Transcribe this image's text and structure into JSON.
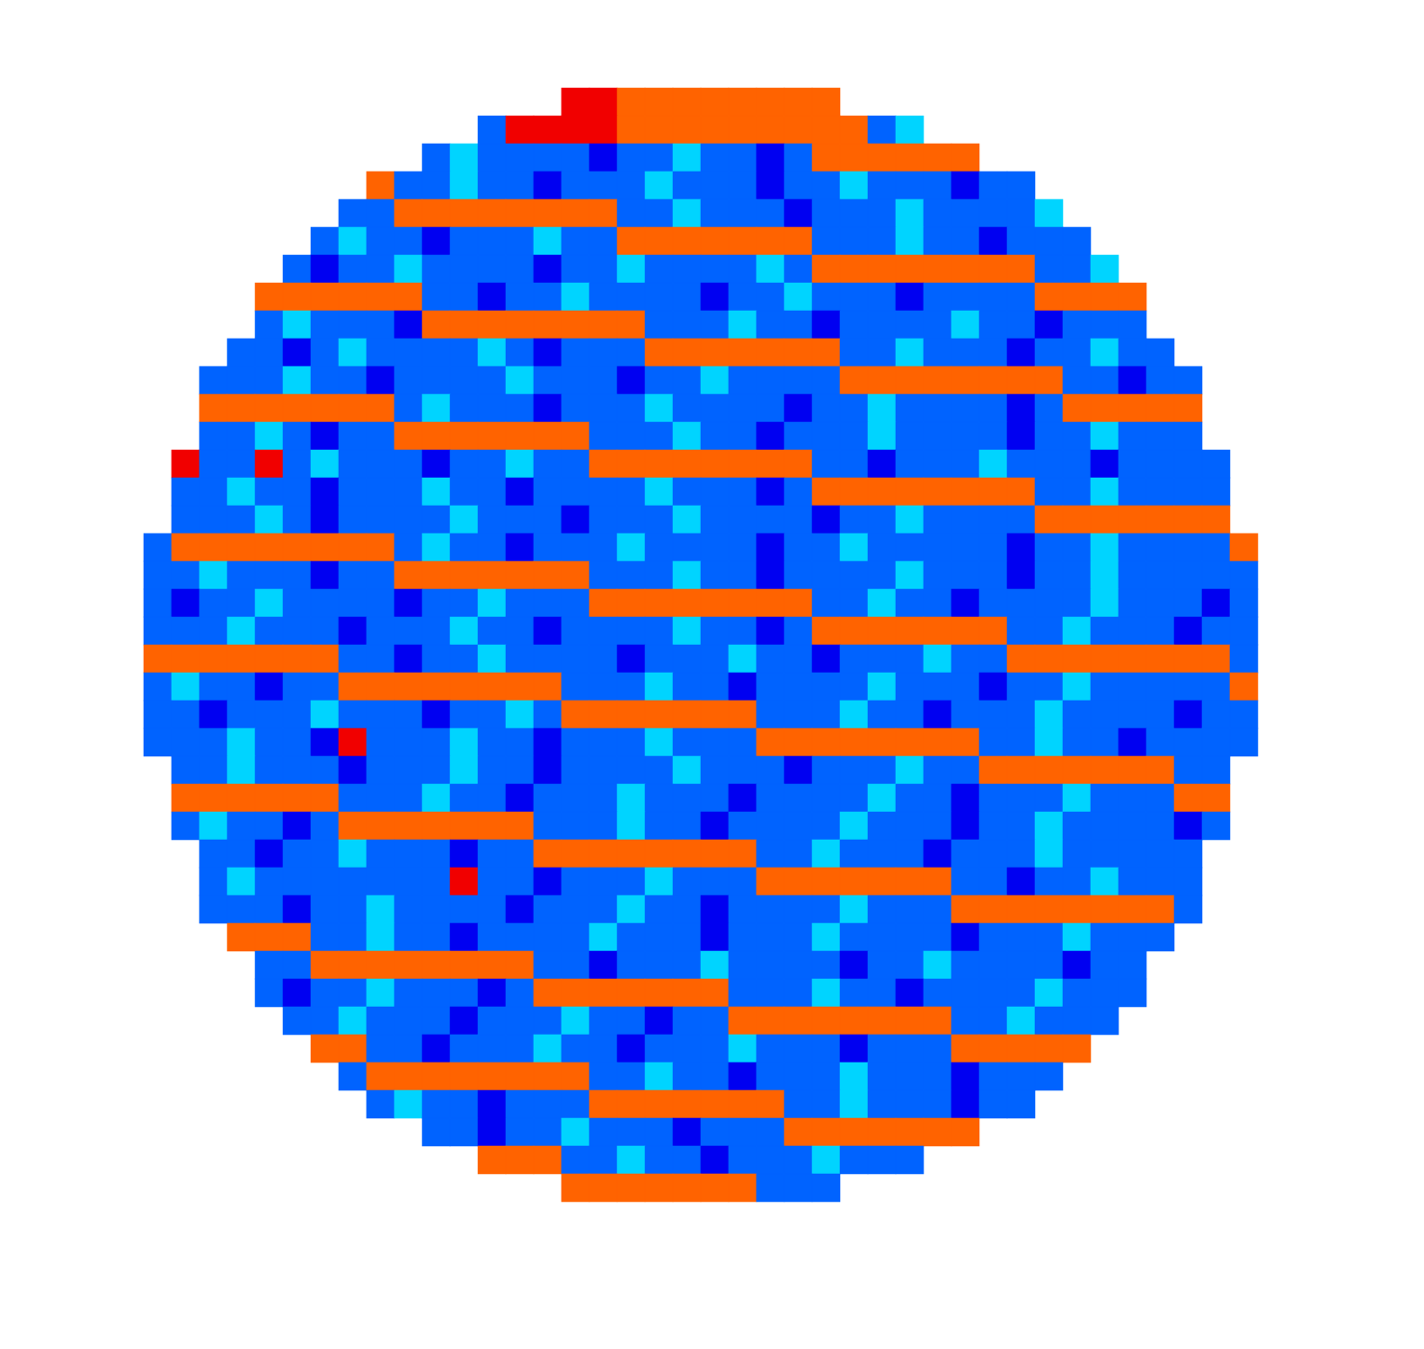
{
  "chart_data": {
    "type": "heatmap",
    "tick_labels": false,
    "zlim": [
      0,
      9
    ],
    "cells": [
      [
        null,
        null,
        null,
        null,
        null,
        null,
        null,
        null,
        null,
        null,
        null,
        null,
        null,
        null,
        null,
        8,
        8,
        7,
        7,
        7,
        7,
        7,
        7,
        7,
        7,
        null,
        null,
        null,
        null,
        null,
        null,
        null,
        null,
        null,
        null,
        null,
        null,
        null,
        null,
        null
      ],
      [
        null,
        null,
        null,
        null,
        null,
        null,
        null,
        null,
        null,
        null,
        null,
        null,
        2,
        8,
        8,
        8,
        8,
        7,
        7,
        7,
        7,
        7,
        7,
        7,
        7,
        7,
        2,
        3,
        null,
        null,
        null,
        null,
        null,
        null,
        null,
        null,
        null,
        null,
        null,
        null
      ],
      [
        null,
        null,
        null,
        null,
        null,
        null,
        null,
        null,
        null,
        null,
        2,
        3,
        2,
        2,
        2,
        2,
        1,
        2,
        2,
        3,
        2,
        2,
        1,
        2,
        7,
        7,
        7,
        7,
        7,
        7,
        null,
        null,
        null,
        null,
        null,
        null,
        null,
        null,
        null,
        null
      ],
      [
        null,
        null,
        null,
        null,
        null,
        null,
        null,
        null,
        7,
        2,
        2,
        3,
        2,
        2,
        1,
        2,
        2,
        2,
        3,
        2,
        2,
        2,
        1,
        2,
        2,
        3,
        2,
        2,
        2,
        1,
        2,
        2,
        null,
        null,
        null,
        null,
        null,
        null,
        null,
        null
      ],
      [
        null,
        null,
        null,
        null,
        null,
        null,
        null,
        2,
        2,
        7,
        7,
        7,
        7,
        7,
        7,
        7,
        7,
        2,
        2,
        3,
        2,
        2,
        2,
        1,
        2,
        2,
        2,
        3,
        2,
        2,
        2,
        2,
        3,
        null,
        null,
        null,
        null,
        null,
        null,
        null
      ],
      [
        null,
        null,
        null,
        null,
        null,
        null,
        2,
        3,
        2,
        2,
        1,
        2,
        2,
        2,
        3,
        2,
        2,
        7,
        7,
        7,
        7,
        7,
        7,
        7,
        2,
        2,
        2,
        3,
        2,
        2,
        1,
        2,
        2,
        2,
        null,
        null,
        null,
        null,
        null,
        null
      ],
      [
        null,
        null,
        null,
        null,
        null,
        2,
        1,
        2,
        2,
        3,
        2,
        2,
        2,
        2,
        1,
        2,
        2,
        3,
        2,
        2,
        2,
        2,
        3,
        2,
        7,
        7,
        7,
        7,
        7,
        7,
        7,
        7,
        2,
        2,
        3,
        null,
        null,
        null,
        null,
        null
      ],
      [
        null,
        null,
        null,
        null,
        7,
        7,
        7,
        7,
        7,
        7,
        2,
        2,
        1,
        2,
        2,
        3,
        2,
        2,
        2,
        2,
        1,
        2,
        2,
        3,
        2,
        2,
        2,
        1,
        2,
        2,
        2,
        2,
        7,
        7,
        7,
        7,
        null,
        null,
        null,
        null
      ],
      [
        null,
        null,
        null,
        null,
        2,
        3,
        2,
        2,
        2,
        1,
        7,
        7,
        7,
        7,
        7,
        7,
        7,
        7,
        2,
        2,
        2,
        3,
        2,
        2,
        1,
        2,
        2,
        2,
        2,
        3,
        2,
        2,
        1,
        2,
        2,
        2,
        null,
        null,
        null,
        null
      ],
      [
        null,
        null,
        null,
        2,
        2,
        1,
        2,
        3,
        2,
        2,
        2,
        2,
        3,
        2,
        1,
        2,
        2,
        2,
        7,
        7,
        7,
        7,
        7,
        7,
        7,
        2,
        2,
        3,
        2,
        2,
        2,
        1,
        2,
        2,
        3,
        2,
        2,
        null,
        null,
        null
      ],
      [
        null,
        null,
        2,
        2,
        2,
        3,
        2,
        2,
        1,
        2,
        2,
        2,
        2,
        3,
        2,
        2,
        2,
        1,
        2,
        2,
        3,
        2,
        2,
        2,
        2,
        7,
        7,
        7,
        7,
        7,
        7,
        7,
        7,
        2,
        2,
        1,
        2,
        2,
        null,
        null
      ],
      [
        null,
        null,
        7,
        7,
        7,
        7,
        7,
        7,
        7,
        2,
        3,
        2,
        2,
        2,
        1,
        2,
        2,
        2,
        3,
        2,
        2,
        2,
        2,
        1,
        2,
        2,
        3,
        2,
        2,
        2,
        2,
        1,
        2,
        7,
        7,
        7,
        7,
        7,
        null,
        null
      ],
      [
        null,
        null,
        2,
        2,
        3,
        2,
        1,
        2,
        2,
        7,
        7,
        7,
        7,
        7,
        7,
        7,
        2,
        2,
        2,
        3,
        2,
        2,
        1,
        2,
        2,
        2,
        3,
        2,
        2,
        2,
        2,
        1,
        2,
        2,
        3,
        2,
        2,
        2,
        null,
        null
      ],
      [
        null,
        8,
        2,
        2,
        8,
        2,
        3,
        2,
        2,
        2,
        1,
        2,
        2,
        3,
        2,
        2,
        7,
        7,
        7,
        7,
        7,
        7,
        7,
        7,
        2,
        2,
        1,
        2,
        2,
        2,
        3,
        2,
        2,
        2,
        1,
        2,
        2,
        2,
        2,
        null
      ],
      [
        null,
        2,
        2,
        3,
        2,
        2,
        1,
        2,
        2,
        2,
        3,
        2,
        2,
        1,
        2,
        2,
        2,
        2,
        3,
        2,
        2,
        2,
        1,
        2,
        7,
        7,
        7,
        7,
        7,
        7,
        7,
        7,
        2,
        2,
        3,
        2,
        2,
        2,
        2,
        null
      ],
      [
        null,
        2,
        2,
        2,
        3,
        2,
        1,
        2,
        2,
        2,
        2,
        3,
        2,
        2,
        2,
        1,
        2,
        2,
        2,
        3,
        2,
        2,
        2,
        2,
        1,
        2,
        2,
        3,
        2,
        2,
        2,
        2,
        7,
        7,
        7,
        7,
        7,
        7,
        7,
        null
      ],
      [
        2,
        7,
        7,
        7,
        7,
        7,
        7,
        7,
        7,
        2,
        3,
        2,
        2,
        1,
        2,
        2,
        2,
        3,
        2,
        2,
        2,
        2,
        1,
        2,
        2,
        3,
        2,
        2,
        2,
        2,
        2,
        1,
        2,
        2,
        3,
        2,
        2,
        2,
        2,
        7
      ],
      [
        2,
        2,
        3,
        2,
        2,
        2,
        1,
        2,
        2,
        7,
        7,
        7,
        7,
        7,
        7,
        7,
        2,
        2,
        2,
        3,
        2,
        2,
        1,
        2,
        2,
        2,
        2,
        3,
        2,
        2,
        2,
        1,
        2,
        2,
        3,
        2,
        2,
        2,
        2,
        2
      ],
      [
        2,
        1,
        2,
        2,
        3,
        2,
        2,
        2,
        2,
        1,
        2,
        2,
        3,
        2,
        2,
        2,
        7,
        7,
        7,
        7,
        7,
        7,
        7,
        7,
        2,
        2,
        3,
        2,
        2,
        1,
        2,
        2,
        2,
        2,
        3,
        2,
        2,
        2,
        1,
        2
      ],
      [
        2,
        2,
        2,
        3,
        2,
        2,
        2,
        1,
        2,
        2,
        2,
        3,
        2,
        2,
        1,
        2,
        2,
        2,
        2,
        3,
        2,
        2,
        1,
        2,
        7,
        7,
        7,
        7,
        7,
        7,
        7,
        2,
        2,
        3,
        2,
        2,
        2,
        1,
        2,
        2
      ],
      [
        7,
        7,
        7,
        7,
        7,
        7,
        7,
        2,
        2,
        1,
        2,
        2,
        3,
        2,
        2,
        2,
        2,
        1,
        2,
        2,
        2,
        3,
        2,
        2,
        1,
        2,
        2,
        2,
        3,
        2,
        2,
        7,
        7,
        7,
        7,
        7,
        7,
        7,
        7,
        2
      ],
      [
        2,
        3,
        2,
        2,
        1,
        2,
        2,
        7,
        7,
        7,
        7,
        7,
        7,
        7,
        7,
        2,
        2,
        2,
        3,
        2,
        2,
        1,
        2,
        2,
        2,
        2,
        3,
        2,
        2,
        2,
        1,
        2,
        2,
        3,
        2,
        2,
        2,
        2,
        2,
        7
      ],
      [
        2,
        2,
        1,
        2,
        2,
        2,
        3,
        2,
        2,
        2,
        1,
        2,
        2,
        3,
        2,
        7,
        7,
        7,
        7,
        7,
        7,
        7,
        2,
        2,
        2,
        3,
        2,
        2,
        1,
        2,
        2,
        2,
        3,
        2,
        2,
        2,
        2,
        1,
        2,
        2
      ],
      [
        2,
        2,
        2,
        3,
        2,
        2,
        1,
        8,
        2,
        2,
        2,
        3,
        2,
        2,
        1,
        2,
        2,
        2,
        3,
        2,
        2,
        2,
        7,
        7,
        7,
        7,
        7,
        7,
        7,
        7,
        2,
        2,
        3,
        2,
        2,
        1,
        2,
        2,
        2,
        2
      ],
      [
        null,
        2,
        2,
        3,
        2,
        2,
        2,
        1,
        2,
        2,
        2,
        3,
        2,
        2,
        1,
        2,
        2,
        2,
        2,
        3,
        2,
        2,
        2,
        1,
        2,
        2,
        2,
        3,
        2,
        2,
        7,
        7,
        7,
        7,
        7,
        7,
        7,
        2,
        2,
        null
      ],
      [
        null,
        7,
        7,
        7,
        7,
        7,
        7,
        2,
        2,
        2,
        3,
        2,
        2,
        1,
        2,
        2,
        2,
        3,
        2,
        2,
        2,
        1,
        2,
        2,
        2,
        2,
        3,
        2,
        2,
        1,
        2,
        2,
        2,
        3,
        2,
        2,
        2,
        7,
        7,
        null
      ],
      [
        null,
        2,
        3,
        2,
        2,
        1,
        2,
        7,
        7,
        7,
        7,
        7,
        7,
        7,
        2,
        2,
        2,
        3,
        2,
        2,
        1,
        2,
        2,
        2,
        2,
        3,
        2,
        2,
        2,
        1,
        2,
        2,
        3,
        2,
        2,
        2,
        2,
        1,
        2,
        null
      ],
      [
        null,
        null,
        2,
        2,
        1,
        2,
        2,
        3,
        2,
        2,
        2,
        1,
        2,
        2,
        7,
        7,
        7,
        7,
        7,
        7,
        7,
        7,
        2,
        2,
        3,
        2,
        2,
        2,
        1,
        2,
        2,
        2,
        3,
        2,
        2,
        2,
        2,
        2,
        null,
        null
      ],
      [
        null,
        null,
        2,
        3,
        2,
        2,
        2,
        2,
        2,
        2,
        2,
        8,
        2,
        2,
        1,
        2,
        2,
        2,
        3,
        2,
        2,
        2,
        7,
        7,
        7,
        7,
        7,
        7,
        7,
        2,
        2,
        1,
        2,
        2,
        3,
        2,
        2,
        2,
        null,
        null
      ],
      [
        null,
        null,
        2,
        2,
        2,
        1,
        2,
        2,
        3,
        2,
        2,
        2,
        2,
        1,
        2,
        2,
        2,
        3,
        2,
        2,
        1,
        2,
        2,
        2,
        2,
        3,
        2,
        2,
        2,
        7,
        7,
        7,
        7,
        7,
        7,
        7,
        7,
        2,
        null,
        null
      ],
      [
        null,
        null,
        null,
        7,
        7,
        7,
        2,
        2,
        3,
        2,
        2,
        1,
        2,
        2,
        2,
        2,
        3,
        2,
        2,
        2,
        1,
        2,
        2,
        2,
        3,
        2,
        2,
        2,
        2,
        1,
        2,
        2,
        2,
        3,
        2,
        2,
        2,
        null,
        null,
        null
      ],
      [
        null,
        null,
        null,
        null,
        2,
        2,
        7,
        7,
        7,
        7,
        7,
        7,
        7,
        7,
        2,
        2,
        1,
        2,
        2,
        2,
        3,
        2,
        2,
        2,
        2,
        1,
        2,
        2,
        3,
        2,
        2,
        2,
        2,
        1,
        2,
        2,
        null,
        null,
        null,
        null
      ],
      [
        null,
        null,
        null,
        null,
        2,
        1,
        2,
        2,
        3,
        2,
        2,
        2,
        1,
        2,
        7,
        7,
        7,
        7,
        7,
        7,
        7,
        2,
        2,
        2,
        3,
        2,
        2,
        1,
        2,
        2,
        2,
        2,
        3,
        2,
        2,
        2,
        null,
        null,
        null,
        null
      ],
      [
        null,
        null,
        null,
        null,
        null,
        2,
        2,
        3,
        2,
        2,
        2,
        1,
        2,
        2,
        2,
        3,
        2,
        2,
        1,
        2,
        2,
        7,
        7,
        7,
        7,
        7,
        7,
        7,
        7,
        2,
        2,
        3,
        2,
        2,
        2,
        null,
        null,
        null,
        null,
        null
      ],
      [
        null,
        null,
        null,
        null,
        null,
        null,
        7,
        7,
        2,
        2,
        1,
        2,
        2,
        2,
        3,
        2,
        2,
        1,
        2,
        2,
        2,
        3,
        2,
        2,
        2,
        1,
        2,
        2,
        2,
        7,
        7,
        7,
        7,
        7,
        null,
        null,
        null,
        null,
        null,
        null
      ],
      [
        null,
        null,
        null,
        null,
        null,
        null,
        null,
        2,
        7,
        7,
        7,
        7,
        7,
        7,
        7,
        7,
        2,
        2,
        3,
        2,
        2,
        1,
        2,
        2,
        2,
        3,
        2,
        2,
        2,
        1,
        2,
        2,
        2,
        null,
        null,
        null,
        null,
        null,
        null,
        null
      ],
      [
        null,
        null,
        null,
        null,
        null,
        null,
        null,
        null,
        2,
        3,
        2,
        2,
        1,
        2,
        2,
        2,
        7,
        7,
        7,
        7,
        7,
        7,
        7,
        2,
        2,
        3,
        2,
        2,
        2,
        1,
        2,
        2,
        null,
        null,
        null,
        null,
        null,
        null,
        null,
        null
      ],
      [
        null,
        null,
        null,
        null,
        null,
        null,
        null,
        null,
        null,
        null,
        2,
        2,
        1,
        2,
        2,
        3,
        2,
        2,
        2,
        1,
        2,
        2,
        2,
        7,
        7,
        7,
        7,
        7,
        7,
        7,
        null,
        null,
        null,
        null,
        null,
        null,
        null,
        null,
        null,
        null
      ],
      [
        null,
        null,
        null,
        null,
        null,
        null,
        null,
        null,
        null,
        null,
        null,
        null,
        7,
        7,
        7,
        2,
        2,
        3,
        2,
        2,
        1,
        2,
        2,
        2,
        3,
        2,
        2,
        2,
        null,
        null,
        null,
        null,
        null,
        null,
        null,
        null,
        null,
        null,
        null,
        null
      ],
      [
        null,
        null,
        null,
        null,
        null,
        null,
        null,
        null,
        null,
        null,
        null,
        null,
        null,
        null,
        null,
        7,
        7,
        7,
        7,
        7,
        7,
        7,
        2,
        2,
        2,
        null,
        null,
        null,
        null,
        null,
        null,
        null,
        null,
        null,
        null,
        null,
        null,
        null,
        null,
        null
      ]
    ]
  }
}
